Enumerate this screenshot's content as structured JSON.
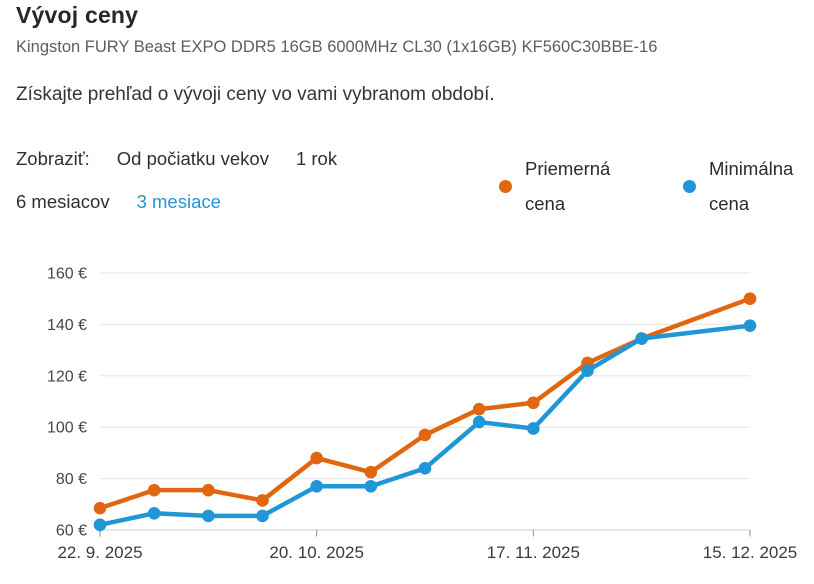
{
  "header": {
    "title": "Vývoj ceny",
    "product": "Kingston FURY Beast EXPO DDR5 16GB 6000MHz CL30 (1x16GB) KF560C30BBE-16",
    "description": "Získajte prehľad o vývoji ceny vo vami vybranom období."
  },
  "filters": {
    "label": "Zobraziť:",
    "options": [
      {
        "label": "Od počiatku vekov",
        "selected": false
      },
      {
        "label": "1 rok",
        "selected": false
      },
      {
        "label": "6 mesiacov",
        "selected": false
      },
      {
        "label": "3 mesiace",
        "selected": true
      }
    ],
    "selected_option": "3 mesiace",
    "selected_color": "#2196d6"
  },
  "legend": {
    "items": [
      {
        "label": "Priemerná cena",
        "color": "#e0660f"
      },
      {
        "label": "Minimálna cena",
        "color": "#2196d6"
      }
    ]
  },
  "chart_data": {
    "type": "line",
    "title": "Vývoj ceny",
    "x_unit": "weeks from first point (22. 9. 2025, weekly samples; last gap spans 2 weeks)",
    "x": [
      0,
      1,
      2,
      3,
      4,
      5,
      6,
      7,
      8,
      9,
      10,
      12
    ],
    "series": [
      {
        "id": "avg-price",
        "name": "Priemerná cena",
        "color": "#e0660f",
        "values": [
          68.5,
          75.5,
          75.5,
          71.5,
          88,
          82.5,
          97,
          107,
          109.5,
          125,
          134.5,
          150
        ]
      },
      {
        "id": "min-price",
        "name": "Minimálna cena",
        "color": "#2196d6",
        "values": [
          62,
          66.5,
          65.5,
          65.5,
          77,
          77,
          84,
          102,
          99.5,
          122,
          134.5,
          139.5
        ]
      }
    ],
    "y_axis": {
      "ticks": [
        60,
        80,
        100,
        120,
        140,
        160
      ],
      "suffix": " €",
      "range": [
        60,
        160
      ]
    },
    "x_axis": {
      "range": [
        0,
        12
      ],
      "tick_positions": [
        0,
        4,
        8,
        12
      ],
      "tick_labels": [
        "22. 9. 2025",
        "20. 10. 2025",
        "17. 11. 2025",
        "15. 12. 2025"
      ]
    },
    "grid": "horizontal",
    "legend_position": "top-right"
  }
}
